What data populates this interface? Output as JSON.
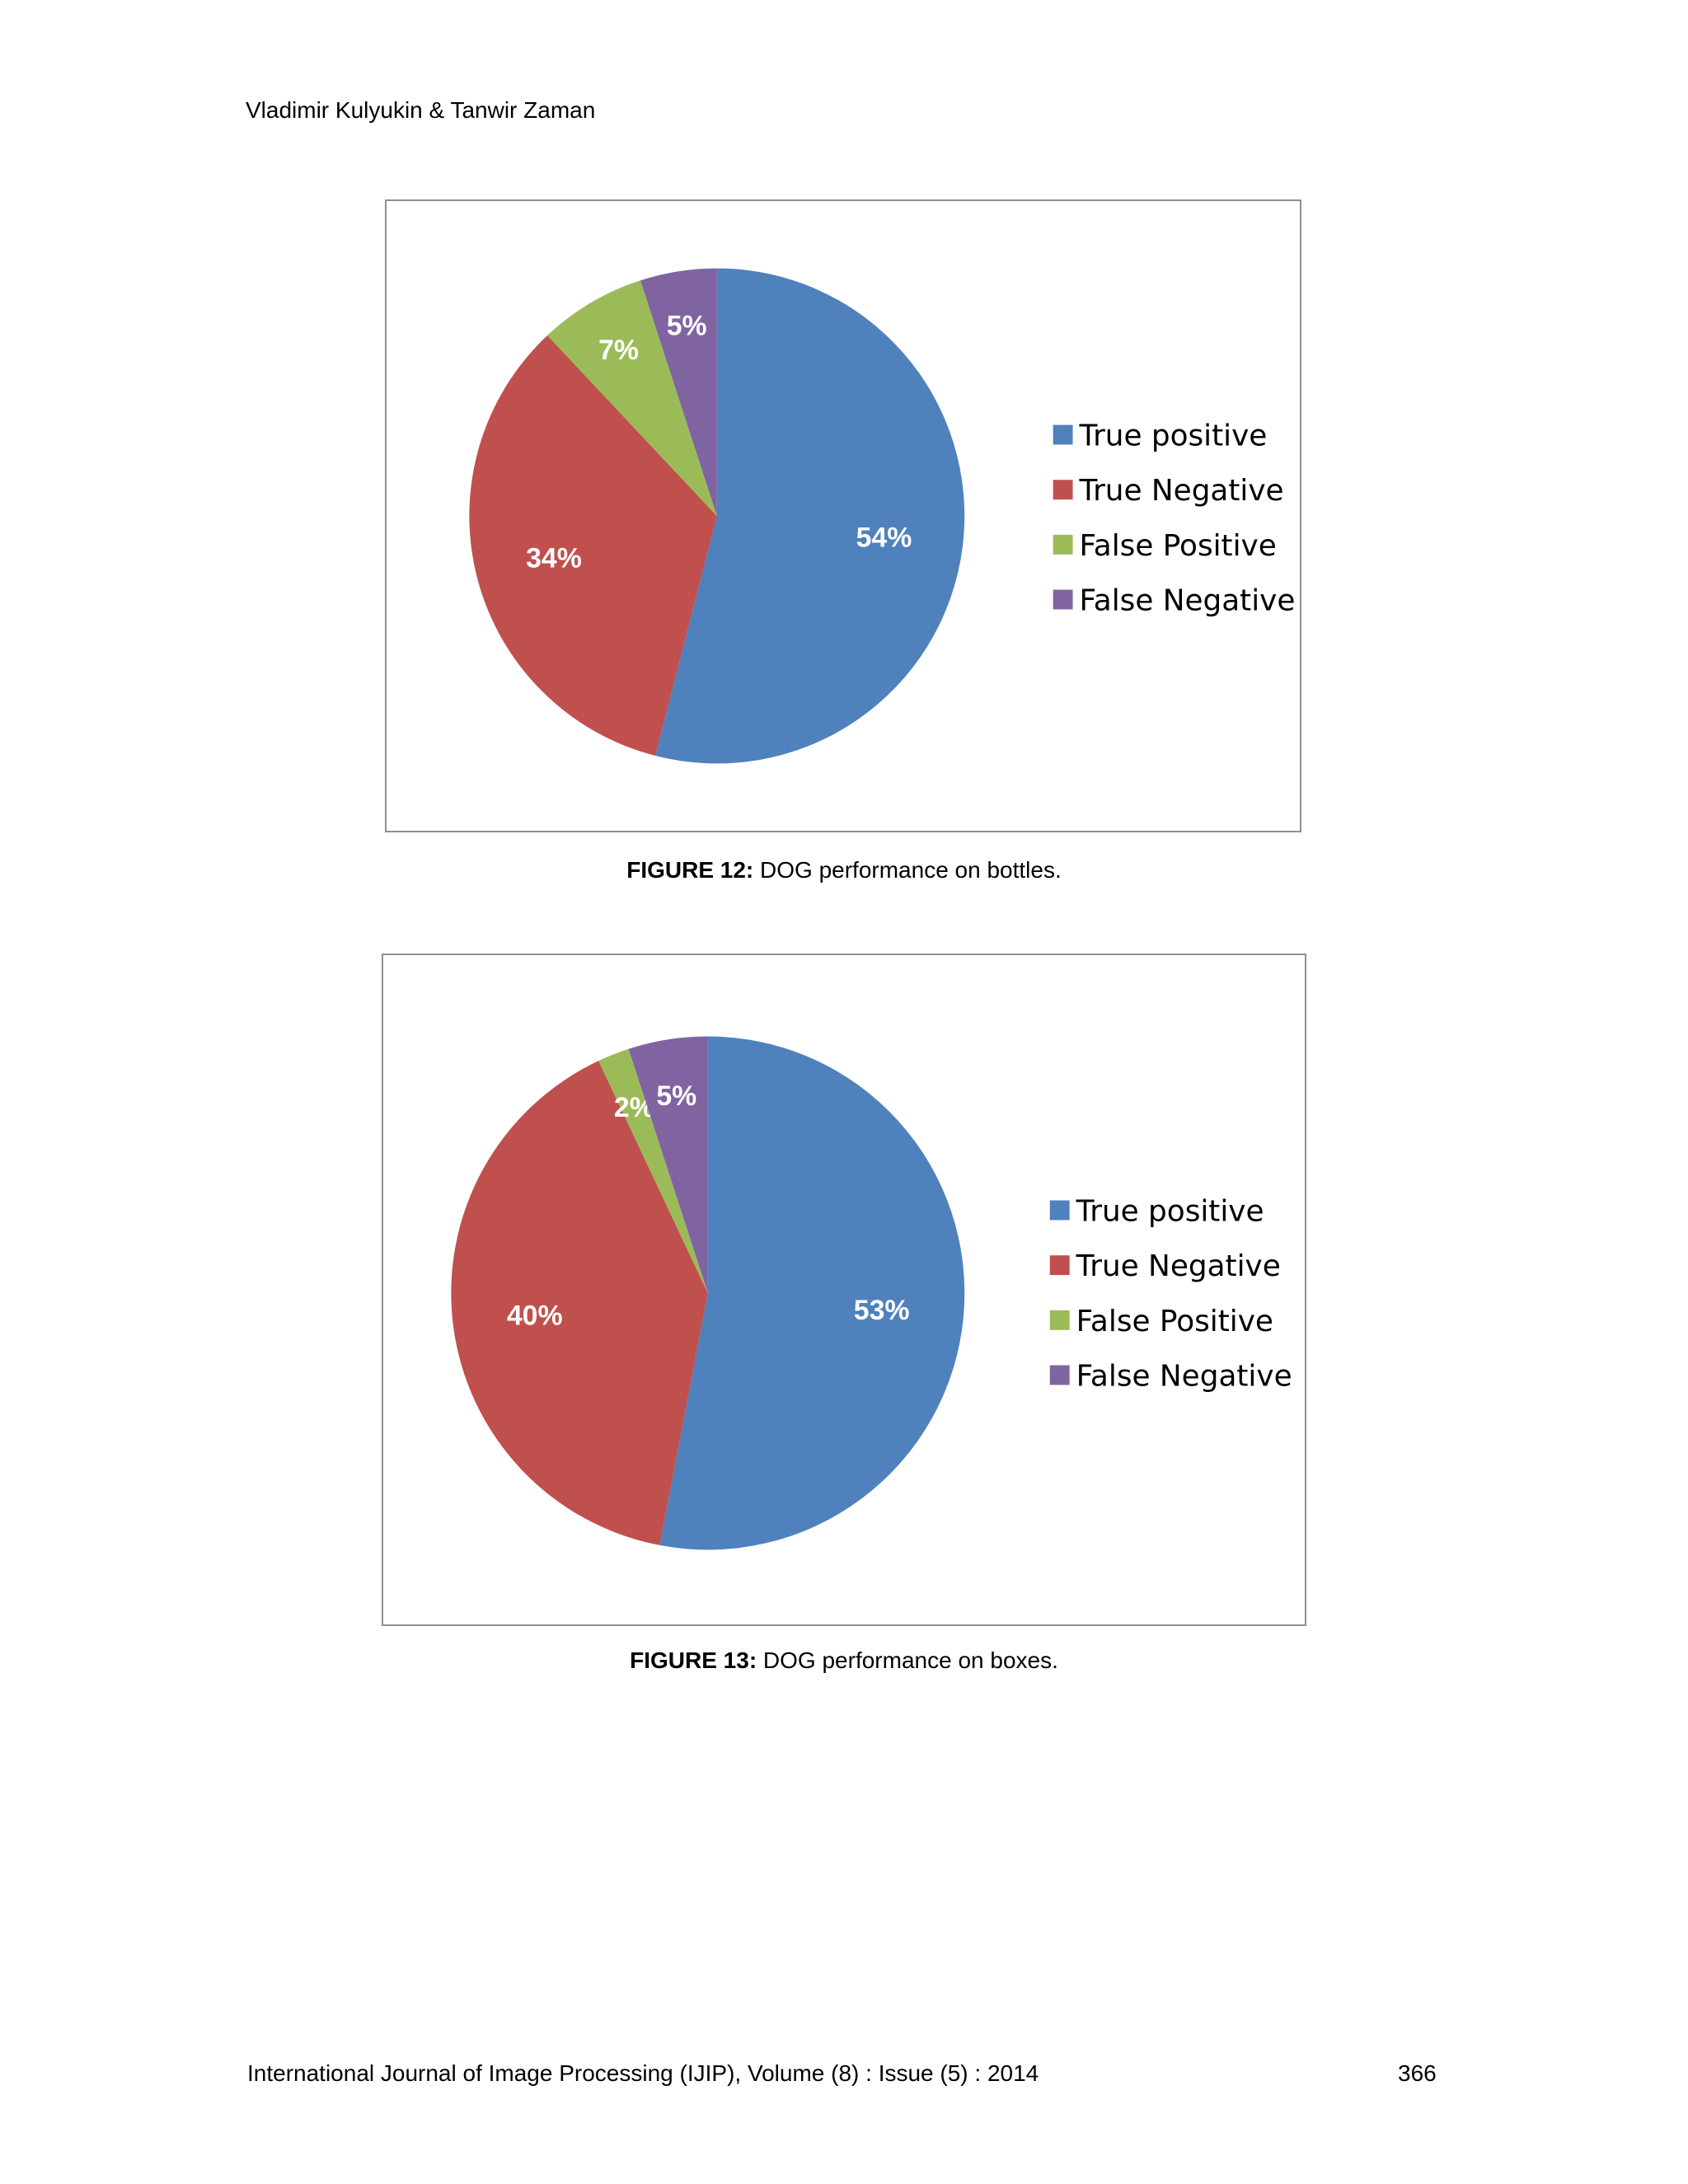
{
  "header": {
    "authors": "Vladimir Kulyukin & Tanwir Zaman"
  },
  "figures": [
    {
      "caption_label": "FIGURE 12:",
      "caption_text": " DOG performance on bottles."
    },
    {
      "caption_label": "FIGURE 13:",
      "caption_text": " DOG performance on boxes."
    }
  ],
  "chart_data": [
    {
      "type": "pie",
      "categories": [
        "True positive",
        "True Negative",
        "False Positive",
        "False Negative"
      ],
      "values": [
        54,
        34,
        7,
        5
      ],
      "data_labels": [
        "54%",
        "34%",
        "7%",
        "5%"
      ],
      "colors": [
        "#4f81bd",
        "#c0504d",
        "#9bbb59",
        "#8064a2"
      ],
      "legend_position": "right"
    },
    {
      "type": "pie",
      "categories": [
        "True positive",
        "True Negative",
        "False Positive",
        "False Negative"
      ],
      "values": [
        53,
        40,
        2,
        5
      ],
      "data_labels": [
        "53%",
        "40%",
        "2%",
        "5%"
      ],
      "colors": [
        "#4f81bd",
        "#c0504d",
        "#9bbb59",
        "#8064a2"
      ],
      "legend_position": "right"
    }
  ],
  "footer": {
    "journal": "International Journal of Image Processing (IJIP), Volume (8) : Issue (5) : 2014",
    "page_number": "366"
  }
}
